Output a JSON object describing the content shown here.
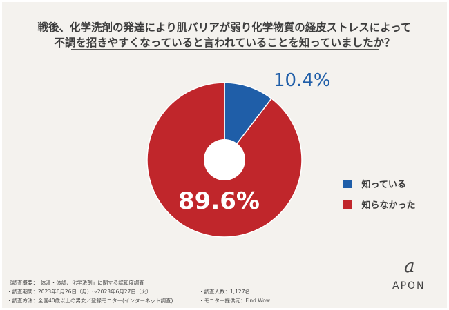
{
  "title_line1": "戦後、化学洗剤の発達により肌バリアが弱り化学物質の経皮ストレスによって",
  "title_line2": "不調を招きやすくなっていると言われていることを知っていましたか？",
  "chart_data": {
    "type": "pie",
    "title": "戦後、化学洗剤の発達により肌バリアが弱り化学物質の経皮ストレスによって不調を招きやすくなっていると言われていることを知っていましたか？",
    "slices": [
      {
        "label": "知っている",
        "value": 10.4,
        "display": "10.4%",
        "color": "#1f5ea8"
      },
      {
        "label": "知らなかった",
        "value": 89.6,
        "display": "89.6%",
        "color": "#c0262b"
      }
    ],
    "legend_position": "right"
  },
  "footnotes": {
    "summary": "《調査概要：「体温・体調、化学洗剤」に関する認知度調査",
    "period": "・調査期間：2023年6月26日（月）～2023年6月27日（火）",
    "method": "・調査方法：全国40歳以上の男女／登録モニター(インターネット調査)",
    "respondents": "・調査人数：1,127名",
    "provider": "・モニター提供元：Find Wow"
  },
  "logo": {
    "mark": "a",
    "text": "APON"
  }
}
